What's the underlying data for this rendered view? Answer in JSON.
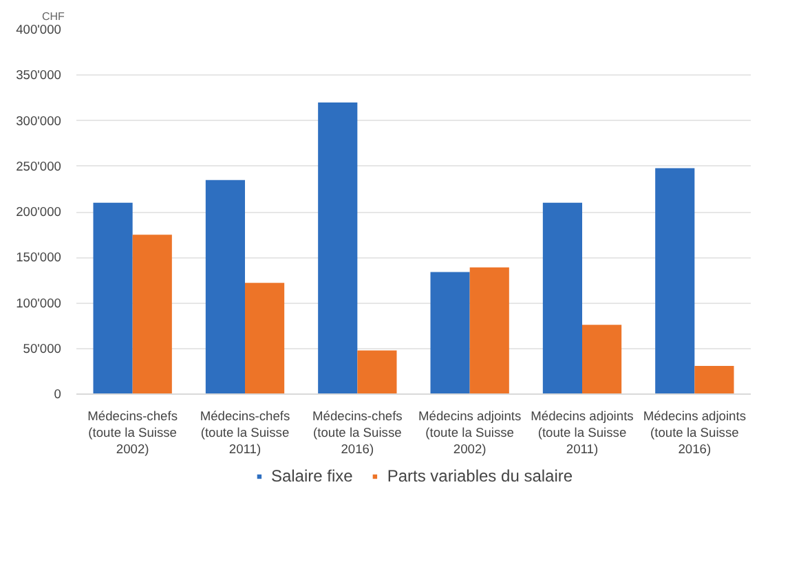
{
  "chart_data": {
    "type": "bar",
    "ylabel": "CHF",
    "categories": [
      "Médecins-chefs\n(toute la Suisse\n2002)",
      "Médecins-chefs\n(toute la Suisse\n2011)",
      "Médecins-chefs\n(toute la Suisse\n2016)",
      "Médecins adjoints\n(toute la Suisse\n2002)",
      "Médecins adjoints\n(toute la Suisse\n2011)",
      "Médecins adjoints\n(toute la Suisse\n2016)"
    ],
    "series": [
      {
        "name": "Salaire fixe",
        "color": "#2e6fc0",
        "values": [
          210000,
          235000,
          320000,
          134000,
          210000,
          248000
        ]
      },
      {
        "name": "Parts variables du salaire",
        "color": "#ed7428",
        "values": [
          175000,
          122000,
          48000,
          139000,
          76000,
          31000
        ]
      }
    ],
    "ylim": [
      0,
      400000
    ],
    "yticks": [
      0,
      {
        "value": 50000,
        "label": "50'000"
      },
      {
        "value": 100000,
        "label": "100'000"
      },
      {
        "value": 150000,
        "label": "150'000"
      },
      {
        "value": 200000,
        "label": "200'000"
      },
      {
        "value": 250000,
        "label": "250'000"
      },
      {
        "value": 300000,
        "label": "300'000"
      },
      {
        "value": 350000,
        "label": "350'000"
      },
      {
        "value": 400000,
        "label": "400'000"
      }
    ],
    "grid": "y",
    "legend": "bottom"
  }
}
